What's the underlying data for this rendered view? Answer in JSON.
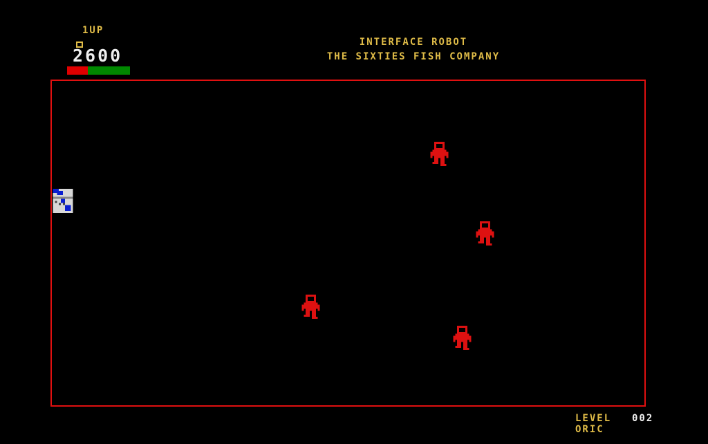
{
  "hud": {
    "player_label": "1UP",
    "score": "2600",
    "energy_bar": {
      "remaining_fraction": 0.67,
      "colors": {
        "depleted": "#e00000",
        "remaining": "#008800"
      }
    },
    "title_line1": "INTERFACE ROBOT",
    "title_line2": "THE SIXTIES FISH COMPANY",
    "level_label": "LEVEL",
    "level_value": "002",
    "player_name": "ORIC"
  },
  "colors": {
    "text": "#e0bc48",
    "arena_border": "#e01010",
    "robot": "#dd1111"
  },
  "sprites": {
    "player": "player-ship-icon",
    "enemy": "robot-icon"
  }
}
